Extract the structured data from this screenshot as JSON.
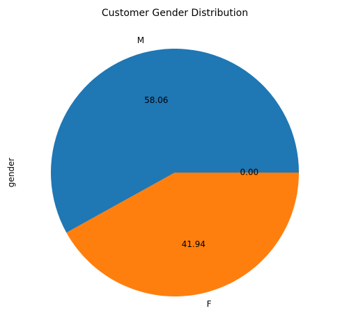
{
  "chart_data": {
    "type": "pie",
    "title": "Customer Gender Distribution",
    "ylabel": "gender",
    "labels": [
      "M",
      "F",
      ""
    ],
    "values": [
      58.06,
      41.94,
      0.0
    ],
    "pct_labels": [
      "58.06",
      "41.94",
      "0.00"
    ],
    "colors": [
      "#1f77b4",
      "#ff7f0e",
      "#2ca02c"
    ],
    "startangle_deg": 0,
    "direction": "counterclockwise",
    "legend": "none"
  }
}
